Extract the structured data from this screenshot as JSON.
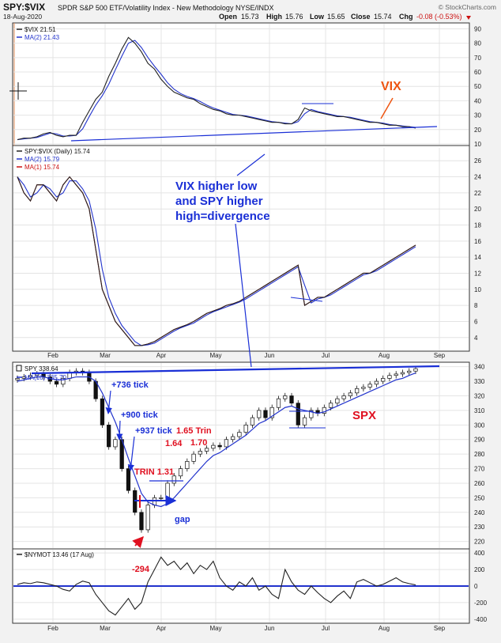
{
  "header": {
    "symbol": "SPY:$VIX",
    "description": "SPDR S&P 500 ETF/Volatility Index - New Methodology  NYSE/INDX",
    "watermark": "© StockCharts.com",
    "date": "18-Aug-2020",
    "open_label": "Open",
    "open": "15.73",
    "high_label": "High",
    "high": "15.76",
    "low_label": "Low",
    "low": "15.65",
    "close_label": "Close",
    "close": "15.74",
    "chg_label": "Chg",
    "chg": "-0.08 (-0.53%)"
  },
  "colors": {
    "price_line": "#222222",
    "ma_blue": "#2233cc",
    "ma_red": "#cc1111",
    "annotation_blue": "#1a2fd6",
    "annotation_red": "#e01020",
    "annotation_orange": "#ee5511",
    "up_candle": "#ffffff",
    "down_candle": "#111111",
    "grid": "#e4e4e4"
  },
  "x_axis": {
    "months": [
      "Feb",
      "Mar",
      "Apr",
      "May",
      "Jun",
      "Jul",
      "Aug",
      "Sep"
    ]
  },
  "chart_data": [
    {
      "type": "line",
      "panel": "vix",
      "series": [
        {
          "name": "$VIX 21.51",
          "values": [
            13,
            14,
            14,
            15,
            17,
            18,
            16,
            15,
            16,
            16,
            25,
            33,
            41,
            46,
            57,
            66,
            76,
            84,
            80,
            74,
            66,
            62,
            55,
            50,
            46,
            44,
            42,
            41,
            38,
            36,
            34,
            33,
            31,
            30,
            30,
            29,
            28,
            27,
            26,
            25,
            25,
            24,
            24,
            27,
            35,
            33,
            32,
            31,
            30,
            29,
            29,
            28,
            27,
            26,
            25,
            25,
            24,
            23,
            23,
            22,
            22,
            21
          ]
        },
        {
          "name": "MA(2) 21.43",
          "values": [
            13,
            13.5,
            14,
            14.5,
            16,
            17.5,
            17,
            15.5,
            15.5,
            16,
            20.5,
            29,
            37,
            43.5,
            51.5,
            61.5,
            71,
            80,
            82,
            77,
            70,
            64,
            58.5,
            52.5,
            48,
            45,
            43,
            41.5,
            39.5,
            37,
            35,
            33.5,
            32,
            30.5,
            30,
            29.5,
            28.5,
            27.5,
            26.5,
            25.5,
            25,
            24.5,
            24,
            25.5,
            31,
            34,
            32.5,
            31.5,
            30.5,
            29.5,
            29,
            28.5,
            27.5,
            26.5,
            25.5,
            25,
            24.5,
            23.5,
            23,
            22.5,
            22,
            21.5
          ]
        }
      ],
      "y_ticks": [
        10,
        20,
        30,
        40,
        50,
        60,
        70,
        80,
        90
      ],
      "ylim": [
        10,
        93
      ],
      "annotations": {
        "label": "VIX"
      }
    },
    {
      "type": "line",
      "panel": "spy-vix-ratio",
      "series": [
        {
          "name": "SPY:$VIX (Daily) 15.74",
          "values": [
            24,
            22,
            21,
            23,
            23,
            22,
            21,
            23,
            24,
            23,
            22,
            20,
            15,
            10,
            8,
            6,
            5,
            4,
            3,
            3,
            3.2,
            3.5,
            4,
            4.5,
            5,
            5.3,
            5.6,
            6,
            6.5,
            7,
            7.3,
            7.6,
            8,
            8.2,
            8.5,
            9,
            9.5,
            10,
            10.5,
            11,
            11.5,
            12,
            12.5,
            13,
            8,
            8.5,
            9,
            9,
            9.5,
            10,
            10.5,
            11,
            11.5,
            12,
            12,
            12.5,
            13,
            13.5,
            14,
            14.5,
            15,
            15.5
          ]
        },
        {
          "name": "MA(2) 15.79",
          "values": [
            24,
            23,
            21.5,
            22,
            23,
            22.5,
            21.5,
            22,
            23.5,
            23.5,
            22.5,
            21,
            17.5,
            12.5,
            9,
            7,
            5.5,
            4.5,
            3.5,
            3,
            3.1,
            3.3,
            3.8,
            4.3,
            4.8,
            5.2,
            5.5,
            5.8,
            6.3,
            6.8,
            7.2,
            7.5,
            7.8,
            8.1,
            8.4,
            8.8,
            9.3,
            9.8,
            10.3,
            10.8,
            11.3,
            11.8,
            12.3,
            12.8,
            10.5,
            8.3,
            8.8,
            9,
            9.3,
            9.8,
            10.3,
            10.8,
            11.3,
            11.8,
            12,
            12.3,
            12.8,
            13.3,
            13.8,
            14.3,
            14.8,
            15.3
          ]
        },
        {
          "name": "MA(1) 15.74",
          "values": [
            24,
            22,
            21,
            23,
            23,
            22,
            21,
            23,
            24,
            23,
            22,
            20,
            15,
            10,
            8,
            6,
            5,
            4,
            3,
            3,
            3.2,
            3.5,
            4,
            4.5,
            5,
            5.3,
            5.6,
            6,
            6.5,
            7,
            7.3,
            7.6,
            8,
            8.2,
            8.5,
            9,
            9.5,
            10,
            10.5,
            11,
            11.5,
            12,
            12.5,
            13,
            8,
            8.5,
            9,
            9,
            9.5,
            10,
            10.5,
            11,
            11.5,
            12,
            12,
            12.5,
            13,
            13.5,
            14,
            14.5,
            15,
            15.5
          ]
        }
      ],
      "y_ticks": [
        4,
        6,
        8,
        10,
        12,
        14,
        16,
        18,
        20,
        22,
        24,
        26
      ],
      "ylim": [
        2.5,
        27.5
      ],
      "annotations": {
        "text_lines": [
          "VIX higher low",
          "and SPY higher",
          "high=divergence"
        ]
      }
    },
    {
      "type": "candlestick",
      "panel": "spy",
      "series": [
        {
          "name": "SPY 338.64",
          "close": [
            332,
            333,
            334,
            335,
            333,
            330,
            328,
            332,
            336,
            337,
            336,
            330,
            318,
            300,
            285,
            290,
            270,
            255,
            240,
            228,
            245,
            250,
            250,
            260,
            265,
            270,
            275,
            280,
            282,
            284,
            286,
            285,
            290,
            292,
            295,
            300,
            305,
            310,
            305,
            312,
            318,
            320,
            315,
            300,
            305,
            310,
            308,
            312,
            315,
            318,
            320,
            322,
            325,
            326,
            328,
            330,
            332,
            334,
            335,
            336,
            337,
            338.64
          ]
        },
        {
          "name": "MA(10) 335.70",
          "values": [
            330,
            331,
            332,
            333,
            333,
            332,
            331,
            331,
            332,
            333,
            333,
            333,
            330,
            322,
            312,
            302,
            290,
            277,
            265,
            253,
            247,
            245,
            244,
            246,
            250,
            255,
            260,
            265,
            270,
            275,
            279,
            281,
            284,
            287,
            290,
            293,
            297,
            301,
            303,
            306,
            309,
            312,
            313,
            311,
            310,
            309,
            308,
            309,
            311,
            313,
            315,
            317,
            319,
            321,
            323,
            325,
            327,
            329,
            331,
            332,
            334,
            335.7
          ]
        }
      ],
      "y_ticks": [
        220,
        230,
        240,
        250,
        260,
        270,
        280,
        290,
        300,
        310,
        320,
        330,
        340
      ],
      "ylim": [
        216,
        342
      ],
      "annotations": {
        "tick_1": "+736 tick",
        "tick_2": "+900 tick",
        "tick_3": "+937 tick",
        "trin_1": "1.65 Trin",
        "trin_2": "1.70",
        "trin_3": "1.64",
        "trin_4": "TRIN 1.31",
        "gap": "gap",
        "spx": "SPX",
        "low_tick": "-294"
      }
    },
    {
      "type": "line",
      "panel": "nymot",
      "series": [
        {
          "name": "$NYMOT 13.46 (17 Aug)",
          "values": [
            20,
            40,
            30,
            50,
            40,
            20,
            0,
            -40,
            -60,
            20,
            60,
            40,
            -100,
            -200,
            -300,
            -350,
            -250,
            -150,
            -280,
            -200,
            50,
            200,
            350,
            250,
            300,
            200,
            280,
            150,
            250,
            200,
            300,
            100,
            0,
            -50,
            50,
            0,
            100,
            -50,
            0,
            -100,
            -150,
            200,
            50,
            -50,
            -100,
            0,
            -80,
            -150,
            -200,
            -120,
            -60,
            -150,
            50,
            80,
            40,
            0,
            20,
            60,
            100,
            50,
            30,
            13.46
          ]
        }
      ],
      "y_ticks": [
        -400,
        -200,
        0,
        200,
        400
      ],
      "ylim": [
        -430,
        430
      ]
    }
  ]
}
